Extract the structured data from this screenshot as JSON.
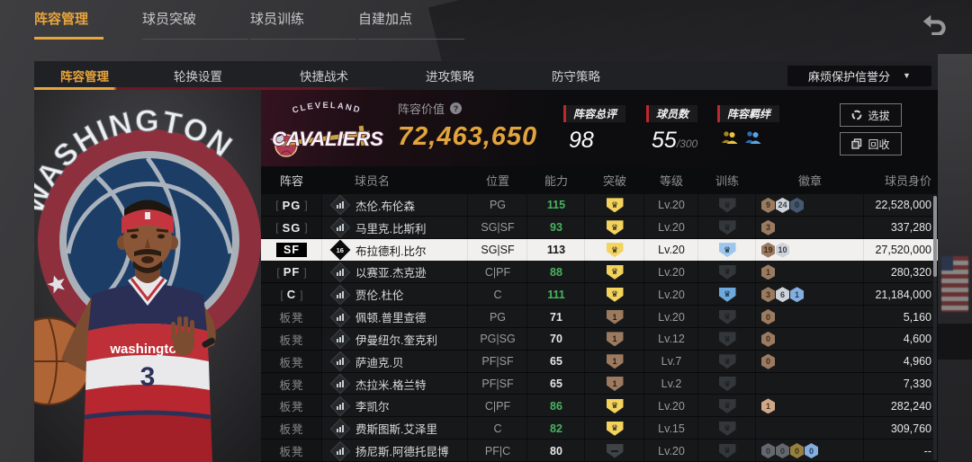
{
  "top_tabs": [
    {
      "label": "阵容管理",
      "active": true
    },
    {
      "label": "球员突破",
      "active": false
    },
    {
      "label": "球员训练",
      "active": false
    },
    {
      "label": "自建加点",
      "active": false
    }
  ],
  "sub_tabs": [
    {
      "label": "阵容管理",
      "active": true
    },
    {
      "label": "轮换设置",
      "active": false
    },
    {
      "label": "快捷战术",
      "active": false
    },
    {
      "label": "进攻策略",
      "active": false
    },
    {
      "label": "防守策略",
      "active": false
    }
  ],
  "dropdown": {
    "value": "麻烦保护信誉分"
  },
  "team_logo": {
    "line1": "CLEVELAND",
    "line2": "CAVALIERS"
  },
  "left_panel": {
    "arc_text": "WASHINGTON",
    "jersey_text": "washington",
    "jersey_number": "3"
  },
  "summary": {
    "value_label": "阵容价值",
    "value_help": "?",
    "value": "72,463,650",
    "rating_label": "阵容总评",
    "rating": "98",
    "count_label": "球员数",
    "count": "55",
    "count_total": "/300",
    "bond_label": "阵容羁绊"
  },
  "actions": {
    "select": "选拔",
    "recycle": "回收"
  },
  "table": {
    "headers": [
      "阵容",
      "球员名",
      "位置",
      "能力",
      "突破",
      "等级",
      "训练",
      "徽章",
      "球员身价"
    ],
    "rows": [
      {
        "slot": "PG",
        "state": "starter",
        "name": "杰伦.布伦森",
        "icon": "bars",
        "pos": "PG",
        "ability": "115",
        "ability_green": true,
        "bt": "crown",
        "level": "Lv.20",
        "train": "tgray",
        "badges": [
          {
            "v": "9",
            "c": "bz"
          },
          {
            "v": "24",
            "c": "sv"
          },
          {
            "v": "0",
            "c": "db"
          }
        ],
        "value": "22,528,000"
      },
      {
        "slot": "SG",
        "state": "starter",
        "name": "马里克.比斯利",
        "icon": "bars",
        "pos": "SG|SF",
        "ability": "93",
        "ability_green": true,
        "bt": "crown",
        "level": "Lv.20",
        "train": "tgray",
        "badges": [
          {
            "v": "3",
            "c": "bz"
          }
        ],
        "value": "337,280"
      },
      {
        "slot": "SF",
        "state": "selected",
        "name": "布拉德利.比尔",
        "icon": "16",
        "pos": "SG|SF",
        "ability": "113",
        "ability_green": false,
        "bt": "crown",
        "level": "Lv.20",
        "train": "tbluel",
        "badges": [
          {
            "v": "19",
            "c": "bz"
          },
          {
            "v": "10",
            "c": "sv"
          }
        ],
        "value": "27,520,000"
      },
      {
        "slot": "PF",
        "state": "starter",
        "name": "以赛亚.杰克逊",
        "icon": "bars",
        "pos": "C|PF",
        "ability": "88",
        "ability_green": true,
        "bt": "crown",
        "level": "Lv.20",
        "train": "tgray",
        "badges": [
          {
            "v": "1",
            "c": "bz"
          }
        ],
        "value": "280,320"
      },
      {
        "slot": "C",
        "state": "starter",
        "name": "贾伦.杜伦",
        "icon": "bars",
        "pos": "C",
        "ability": "111",
        "ability_green": true,
        "bt": "crown",
        "level": "Lv.20",
        "train": "tblue",
        "badges": [
          {
            "v": "3",
            "c": "bz"
          },
          {
            "v": "6",
            "c": "sv"
          },
          {
            "v": "1",
            "c": "bl"
          }
        ],
        "value": "21,184,000"
      },
      {
        "slot": "板凳",
        "state": "bench",
        "name": "佩顿.普里查德",
        "icon": "bars",
        "pos": "PG",
        "ability": "71",
        "ability_green": false,
        "bt": "one",
        "level": "Lv.20",
        "train": "tgray",
        "badges": [
          {
            "v": "0",
            "c": "bz"
          }
        ],
        "value": "5,160"
      },
      {
        "slot": "板凳",
        "state": "bench",
        "name": "伊曼纽尔.奎克利",
        "icon": "bars",
        "pos": "PG|SG",
        "ability": "70",
        "ability_green": false,
        "bt": "one",
        "level": "Lv.12",
        "train": "tgray",
        "badges": [
          {
            "v": "0",
            "c": "bz"
          }
        ],
        "value": "4,600"
      },
      {
        "slot": "板凳",
        "state": "bench",
        "name": "萨迪克.贝",
        "icon": "bars",
        "pos": "PF|SF",
        "ability": "65",
        "ability_green": false,
        "bt": "one",
        "level": "Lv.7",
        "train": "tgray",
        "badges": [
          {
            "v": "0",
            "c": "bz"
          }
        ],
        "value": "4,960"
      },
      {
        "slot": "板凳",
        "state": "bench",
        "name": "杰拉米.格兰特",
        "icon": "bars",
        "pos": "PF|SF",
        "ability": "65",
        "ability_green": false,
        "bt": "one",
        "level": "Lv.2",
        "train": "tgray",
        "badges": [],
        "value": "7,330"
      },
      {
        "slot": "板凳",
        "state": "bench",
        "name": "李凯尔",
        "icon": "bars",
        "pos": "C|PF",
        "ability": "86",
        "ability_green": true,
        "bt": "crown",
        "level": "Lv.20",
        "train": "tgray",
        "badges": [
          {
            "v": "1",
            "c": "bzl"
          }
        ],
        "value": "282,240"
      },
      {
        "slot": "板凳",
        "state": "bench",
        "name": "费斯图斯.艾泽里",
        "icon": "bars",
        "pos": "C",
        "ability": "82",
        "ability_green": true,
        "bt": "crown",
        "level": "Lv.15",
        "train": "tgray",
        "badges": [],
        "value": "309,760"
      },
      {
        "slot": "板凳",
        "state": "bench",
        "name": "扬尼斯.阿德托昆博",
        "icon": "bars",
        "pos": "PF|C",
        "ability": "80",
        "ability_green": false,
        "bt": "minus",
        "level": "Lv.20",
        "train": "tgray",
        "badges": [
          {
            "v": "0",
            "c": "gy"
          },
          {
            "v": "0",
            "c": "gy"
          },
          {
            "v": "0",
            "c": "gd"
          },
          {
            "v": "0",
            "c": "bl"
          }
        ],
        "value": "--"
      }
    ]
  },
  "colors": {
    "accent_yellow": "#e9a43c",
    "ability_green": "#49b45f",
    "badge_red": "#c0272d",
    "selected_row": "#f1f0ee",
    "panel_bg": "#141517"
  }
}
